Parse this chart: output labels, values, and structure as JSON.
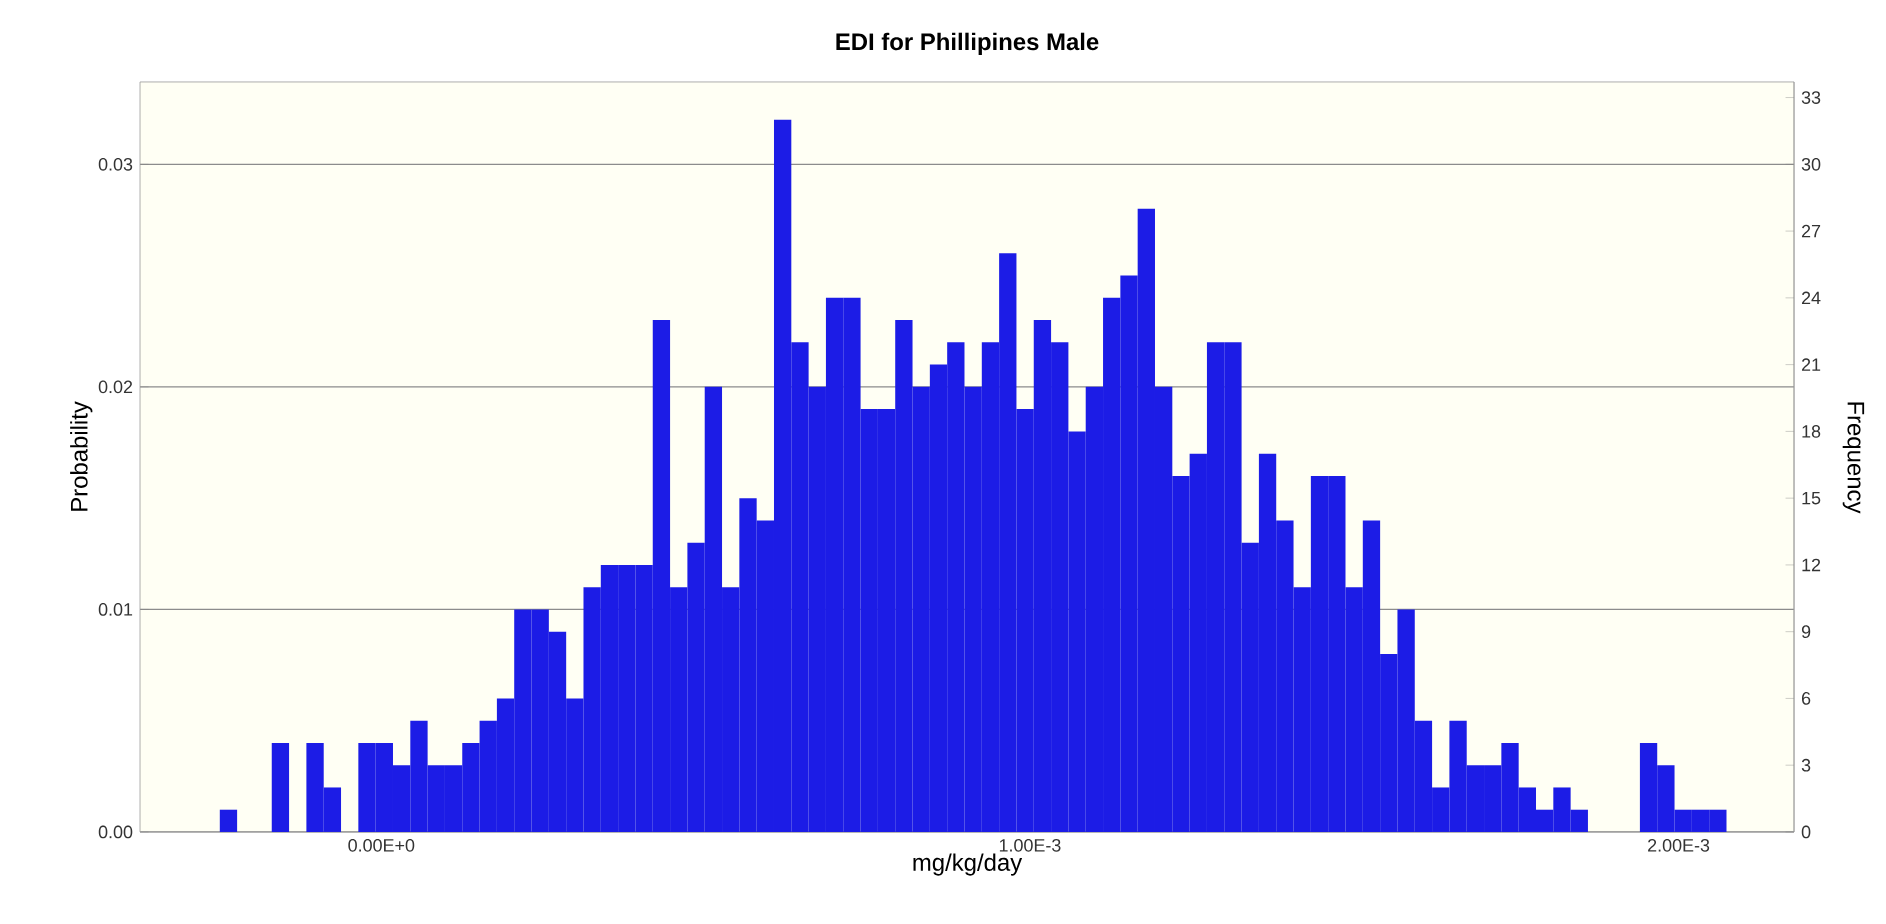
{
  "chart_data": {
    "type": "histogram",
    "title": "EDI for Phillipines Male",
    "xlabel": "mg/kg/day",
    "ylabel": "Probability",
    "y2label": "Frequency",
    "bins": [
      -0.000249,
      -0.0002223,
      -0.0001956,
      -0.0001689,
      -0.0001422,
      -0.0001155,
      -8.88e-05,
      -6.21e-05,
      -3.54e-05,
      -8.7e-06,
      1.8e-05,
      4.47e-05,
      7.14e-05,
      9.81e-05,
      0.0001248,
      0.0001515,
      0.0001782,
      0.0002049,
      0.0002316,
      0.0002583,
      0.000285,
      0.0003117,
      0.0003384,
      0.0003651,
      0.0003918,
      0.0004185,
      0.0004452,
      0.0004719,
      0.0004986,
      0.0005253,
      0.000552,
      0.0005787,
      0.0006054,
      0.0006321,
      0.0006588,
      0.0006855,
      0.0007122,
      0.0007389,
      0.0007656,
      0.0007923,
      0.000819,
      0.0008457,
      0.0008724,
      0.0008991,
      0.0009258,
      0.0009525,
      0.0009792,
      0.0010059,
      0.0010326,
      0.0010593,
      0.001086,
      0.0011127,
      0.0011394,
      0.0011661,
      0.0011928,
      0.0012195,
      0.0012462,
      0.0012729,
      0.0012996,
      0.0013263,
      0.001353,
      0.0013797,
      0.0014064,
      0.0014331,
      0.0014598,
      0.0014865,
      0.0015132,
      0.0015399,
      0.0015666,
      0.0015933,
      0.00162,
      0.0016467,
      0.0016734,
      0.0017001,
      0.0017268,
      0.0017535,
      0.0017802,
      0.0018069,
      0.0018336,
      0.0018603,
      0.001887,
      0.0019137,
      0.0019404,
      0.0019671,
      0.0019938,
      0.0020205,
      0.0020472,
      0.0020739
    ],
    "values": [
      0.001,
      0,
      0,
      0.004,
      0,
      0.004,
      0.002,
      0,
      0.004,
      0.004,
      0.003,
      0.005,
      0.003,
      0.003,
      0.004,
      0.005,
      0.006,
      0.01,
      0.01,
      0.009,
      0.006,
      0.011,
      0.012,
      0.012,
      0.012,
      0.023,
      0.011,
      0.013,
      0.02,
      0.011,
      0.015,
      0.014,
      0.032,
      0.022,
      0.02,
      0.024,
      0.024,
      0.019,
      0.019,
      0.023,
      0.02,
      0.021,
      0.022,
      0.02,
      0.022,
      0.026,
      0.019,
      0.023,
      0.022,
      0.018,
      0.02,
      0.024,
      0.025,
      0.028,
      0.02,
      0.016,
      0.017,
      0.022,
      0.022,
      0.013,
      0.017,
      0.014,
      0.011,
      0.016,
      0.016,
      0.011,
      0.014,
      0.008,
      0.01,
      0.005,
      0.002,
      0.005,
      0.003,
      0.003,
      0.004,
      0.002,
      0.001,
      0.002,
      0.001,
      0,
      0,
      0,
      0.004,
      0.003,
      0.001,
      0.001,
      0.001
    ],
    "color": "#1c1ce6",
    "xlim": [
      -0.000372,
      0.002178
    ],
    "xticks": [
      {
        "value": 0,
        "label": "0.00E+0"
      },
      {
        "value": 0.001,
        "label": "1.00E-3"
      },
      {
        "value": 0.002,
        "label": "2.00E-3"
      }
    ],
    "ylim": [
      0,
      0.0337
    ],
    "yticks": [
      {
        "value": 0,
        "label": "0.00"
      },
      0.01,
      0.02,
      0.03
    ],
    "y2lim": [
      0,
      33.7
    ],
    "y2ticks": [
      0,
      3,
      6,
      9,
      12,
      15,
      18,
      21,
      24,
      27,
      30,
      33
    ],
    "grid": "y"
  }
}
